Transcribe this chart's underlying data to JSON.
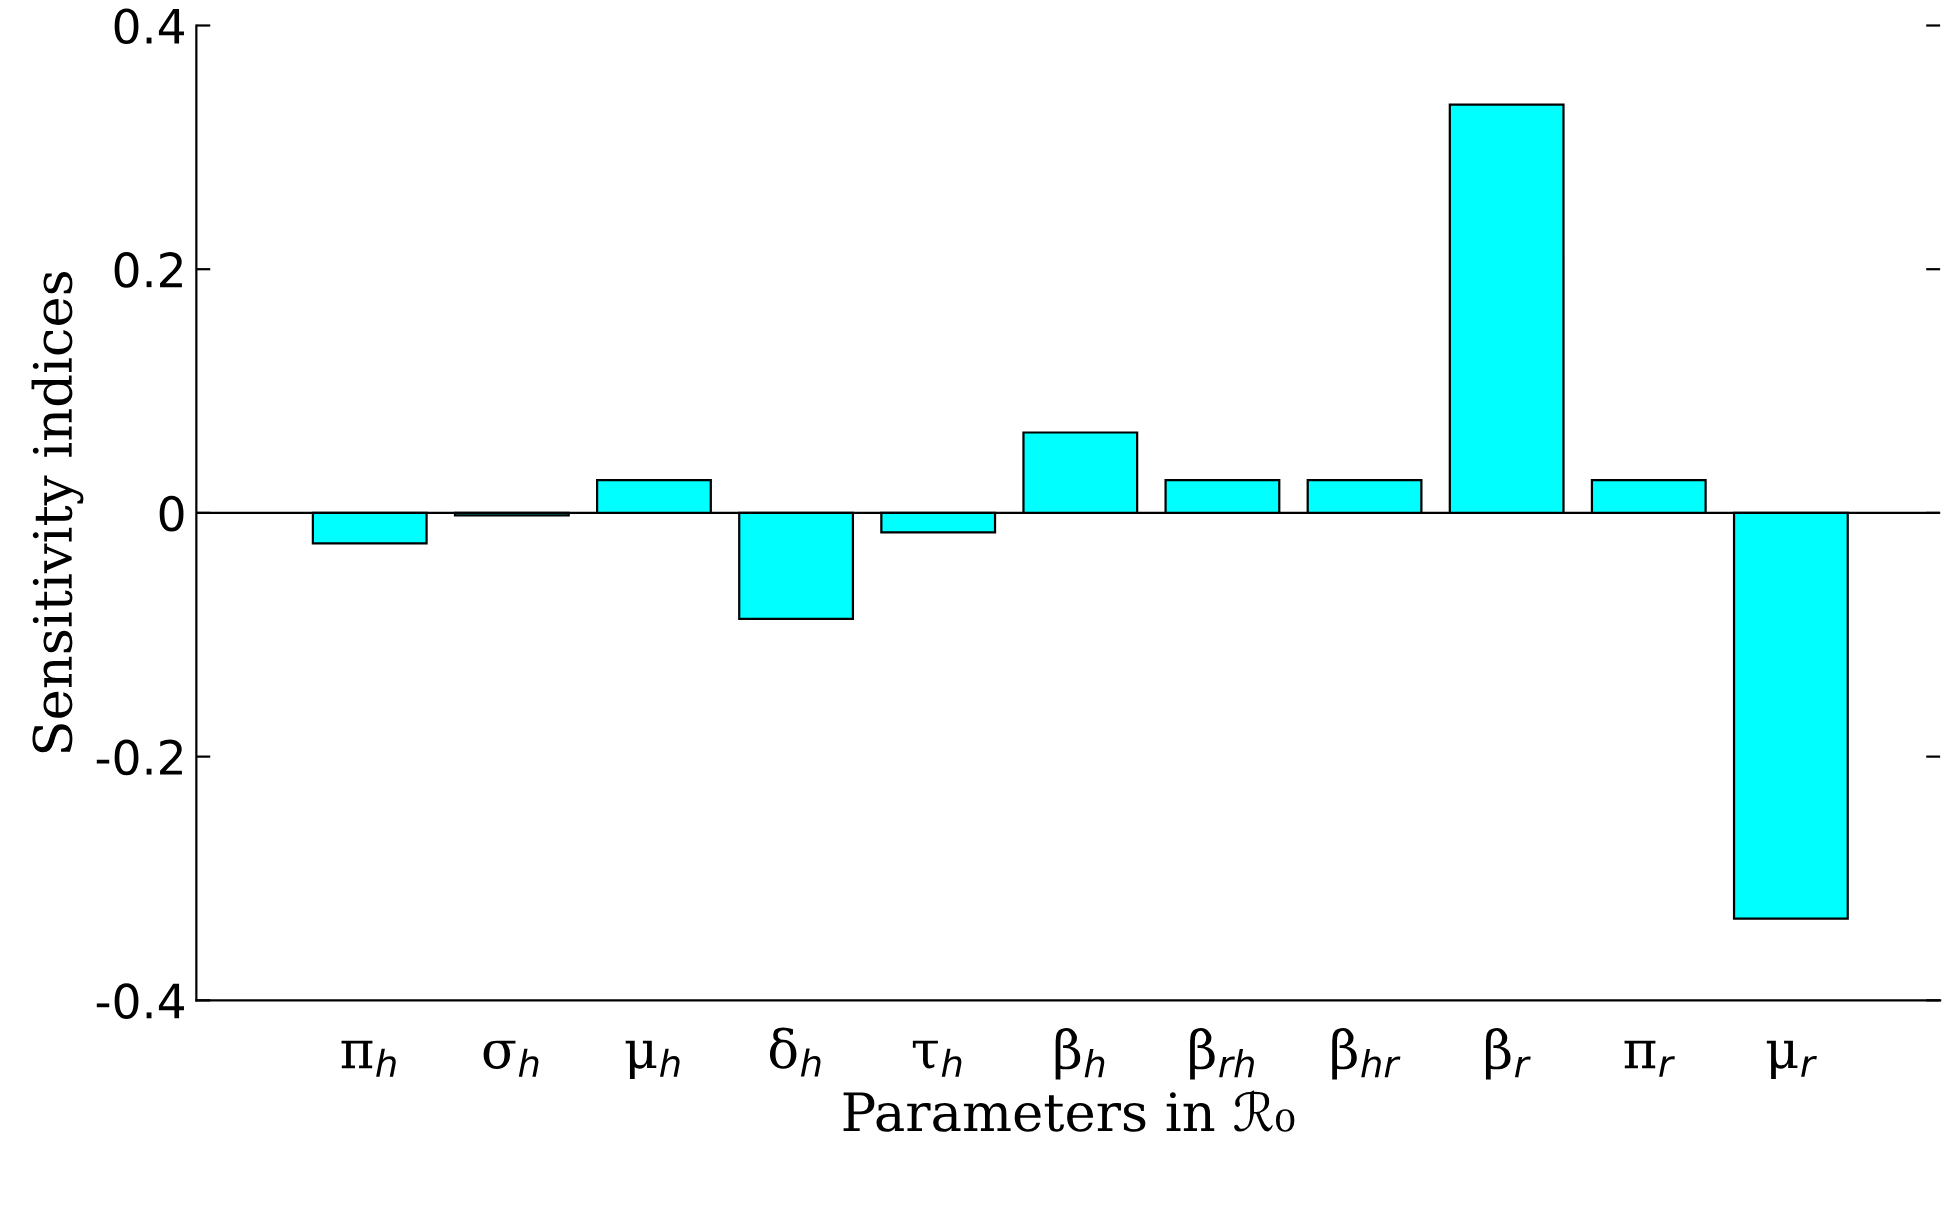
{
  "chart_data": {
    "type": "bar",
    "xlabel": "Parameters in ℛ₀",
    "ylabel": "Sensitivity indices",
    "categories": [
      "π$_{h}$",
      "σ$_{h}$",
      "μ$_{h}$",
      "δ$_{h}$",
      "τ$_{h}$",
      "β$_{h}$",
      "β$_{rh}$",
      "β$_{hr}$",
      "β$_{r}$",
      "π$_{r}$",
      "μ$_{r}$"
    ],
    "values": [
      -0.025,
      -0.002,
      0.027,
      -0.087,
      -0.016,
      0.066,
      0.027,
      0.027,
      0.335,
      0.027,
      -0.333
    ],
    "color": "#00ffff",
    "ylim": [
      -0.4,
      0.4
    ],
    "yticks": [
      {
        "value": -0.4,
        "label": "-0.4"
      },
      {
        "value": -0.2,
        "label": "-0.2"
      },
      0,
      0.2,
      0.4
    ],
    "grid": false,
    "ref_lines": [
      {
        "axis": "y",
        "value": 0,
        "color": "#000000"
      }
    ],
    "legend": false
  }
}
